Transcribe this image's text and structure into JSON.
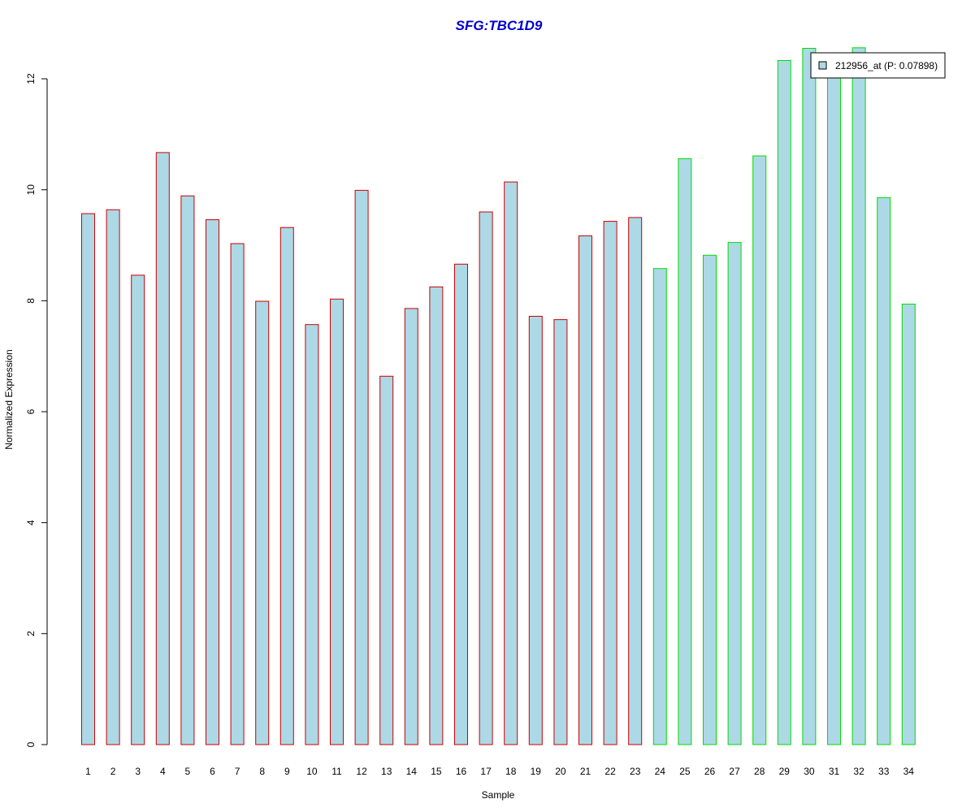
{
  "chart_data": {
    "type": "bar",
    "title": "SFG:TBC1D9",
    "xlabel": "Sample",
    "ylabel": "Normalized Expression",
    "ylim": [
      0,
      12
    ],
    "yticks": [
      0,
      2,
      4,
      6,
      8,
      10,
      12
    ],
    "grid": false,
    "legend_position": "top-right",
    "categories": [
      "1",
      "2",
      "3",
      "4",
      "5",
      "6",
      "7",
      "8",
      "9",
      "10",
      "11",
      "12",
      "13",
      "14",
      "15",
      "16",
      "17",
      "18",
      "19",
      "20",
      "21",
      "22",
      "23",
      "24",
      "25",
      "26",
      "27",
      "28",
      "29",
      "30",
      "31",
      "32",
      "33",
      "34"
    ],
    "series": [
      {
        "name": "212956_at (P: 0.07898)",
        "values": [
          9.57,
          9.64,
          8.46,
          10.67,
          9.89,
          9.46,
          9.03,
          7.99,
          9.32,
          7.57,
          8.03,
          9.99,
          6.64,
          7.86,
          8.25,
          8.66,
          9.6,
          10.14,
          7.72,
          7.66,
          9.17,
          9.43,
          9.5,
          8.58,
          10.56,
          8.82,
          9.05,
          10.61,
          12.33,
          12.55,
          12.09,
          12.56,
          9.86,
          7.94
        ]
      }
    ],
    "group_outline": [
      "#cc0000",
      "#cc0000",
      "#cc0000",
      "#cc0000",
      "#cc0000",
      "#cc0000",
      "#cc0000",
      "#cc0000",
      "#cc0000",
      "#cc0000",
      "#cc0000",
      "#cc0000",
      "#cc0000",
      "#cc0000",
      "#cc0000",
      "#cc0000",
      "#cc0000",
      "#cc0000",
      "#cc0000",
      "#cc0000",
      "#cc0000",
      "#cc0000",
      "#cc0000",
      "#00dd00",
      "#00dd00",
      "#00dd00",
      "#00dd00",
      "#00dd00",
      "#00dd00",
      "#00dd00",
      "#00dd00",
      "#00dd00",
      "#00dd00",
      "#00dd00"
    ]
  },
  "colors": {
    "bar_fill": "#add8e6",
    "title": "#0000cc",
    "axis": "#000000"
  }
}
